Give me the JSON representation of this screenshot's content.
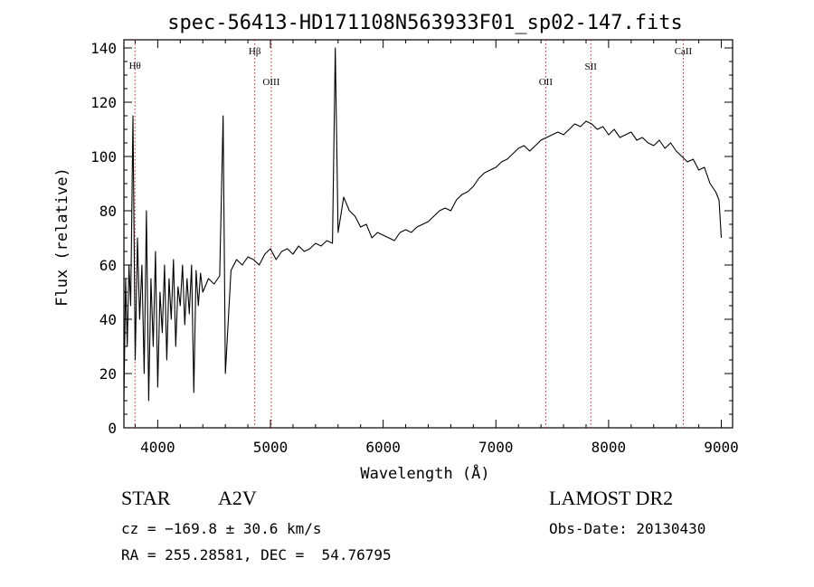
{
  "chart_data": {
    "type": "line",
    "title": "spec-56413-HD171108N563933F01_sp02-147.fits",
    "xlabel": "Wavelength (Å)",
    "ylabel": "Flux (relative)",
    "xlim": [
      3700,
      9100
    ],
    "ylim": [
      0,
      143
    ],
    "xticks": [
      4000,
      5000,
      6000,
      7000,
      8000,
      9000
    ],
    "yticks": [
      0,
      20,
      40,
      60,
      80,
      100,
      120,
      140
    ],
    "grid": false,
    "line_color": "#000000",
    "marker_color": "#b22222",
    "lines": [
      {
        "label": "Hθ",
        "x": 3798
      },
      {
        "label": "Hβ",
        "x": 4861
      },
      {
        "label": "OIII",
        "x": 5007
      },
      {
        "label": "OII",
        "x": 7442
      },
      {
        "label": "SII",
        "x": 7842
      },
      {
        "label": "CaII",
        "x": 8662
      }
    ],
    "series": [
      {
        "x": [
          3700,
          3715,
          3730,
          3745,
          3760,
          3780,
          3800,
          3820,
          3840,
          3860,
          3880,
          3900,
          3920,
          3940,
          3960,
          3980,
          4000,
          4020,
          4040,
          4060,
          4080,
          4100,
          4120,
          4140,
          4160,
          4180,
          4200,
          4220,
          4240,
          4260,
          4280,
          4300,
          4320,
          4340,
          4360,
          4380,
          4400,
          4450,
          4500,
          4550,
          4580,
          4600,
          4650,
          4700,
          4750,
          4800,
          4850,
          4900,
          4950,
          5000,
          5050,
          5100,
          5150,
          5200,
          5250,
          5300,
          5350,
          5400,
          5450,
          5500,
          5550,
          5575,
          5600,
          5650,
          5700,
          5750,
          5800,
          5850,
          5900,
          5950,
          6000,
          6050,
          6100,
          6150,
          6200,
          6250,
          6300,
          6350,
          6400,
          6450,
          6500,
          6550,
          6600,
          6650,
          6700,
          6750,
          6800,
          6850,
          6900,
          6950,
          7000,
          7050,
          7100,
          7150,
          7200,
          7250,
          7300,
          7350,
          7400,
          7450,
          7500,
          7550,
          7600,
          7650,
          7700,
          7750,
          7800,
          7850,
          7900,
          7950,
          8000,
          8050,
          8100,
          8150,
          8200,
          8250,
          8300,
          8350,
          8400,
          8450,
          8500,
          8550,
          8600,
          8650,
          8700,
          8750,
          8800,
          8850,
          8900,
          8950,
          8980,
          9000
        ],
        "y": [
          10,
          55,
          30,
          60,
          45,
          115,
          25,
          70,
          40,
          60,
          20,
          80,
          10,
          55,
          30,
          65,
          15,
          50,
          35,
          60,
          25,
          55,
          40,
          62,
          30,
          52,
          45,
          60,
          38,
          55,
          42,
          60,
          13,
          58,
          45,
          57,
          50,
          55,
          53,
          56,
          115,
          20,
          58,
          62,
          60,
          63,
          62,
          60,
          64,
          66,
          62,
          65,
          66,
          64,
          67,
          65,
          66,
          68,
          67,
          69,
          68,
          140,
          72,
          85,
          80,
          78,
          74,
          75,
          70,
          72,
          71,
          70,
          69,
          72,
          73,
          72,
          74,
          75,
          76,
          78,
          80,
          81,
          80,
          84,
          86,
          87,
          89,
          92,
          94,
          95,
          96,
          98,
          99,
          101,
          103,
          104,
          102,
          104,
          106,
          107,
          108,
          109,
          108,
          110,
          112,
          111,
          113,
          112,
          110,
          111,
          108,
          110,
          107,
          108,
          109,
          106,
          107,
          105,
          104,
          106,
          103,
          105,
          102,
          100,
          98,
          99,
          95,
          96,
          90,
          87,
          84,
          70
        ]
      }
    ]
  },
  "info": {
    "object_class": "STAR",
    "subclass": "A2V",
    "survey": "LAMOST DR2",
    "cz": "cz = −169.8 ± 30.6 km/s",
    "obs_date": "Obs-Date: 20130430",
    "coords": "RA = 255.28581, DEC =  54.76795"
  }
}
